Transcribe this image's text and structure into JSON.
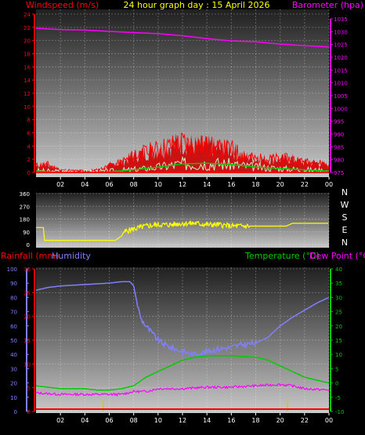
{
  "title": "24 hour graph day : 15 April 2026",
  "colors": {
    "wind": "#ff0000",
    "gust": "#cc0000",
    "avg": "#00cc00",
    "calm": "#cceecc",
    "baro": "#ff00ff",
    "dir": "#ffff00",
    "hum": "#8080ff",
    "temp": "#00cc00",
    "dew": "#ff00ff",
    "rain": "#ff0000",
    "rainbar": "#cccc00"
  },
  "x_ticks": [
    "02",
    "04",
    "06",
    "08",
    "10",
    "12",
    "14",
    "16",
    "18",
    "20",
    "22",
    "00"
  ],
  "panel_wind": {
    "left_label": "Windspeed (m/s)",
    "right_label": "Barometer (hpa)"
  },
  "panel_dir": {
    "compass": [
      "N",
      "W",
      "S",
      "E",
      "N"
    ]
  },
  "panel_climate": {
    "rain_label": "Rainfall (mm)",
    "hum_label": "Humidity",
    "temp_label": "Temperature (°C)",
    "dew_label": "Dew Point (°C)"
  },
  "chart_data": [
    {
      "type": "line",
      "title": "24 hour graph day : 15 April 2026",
      "x_label": "hour",
      "x_range": [
        0,
        24
      ],
      "left_axis": {
        "label": "Windspeed (m/s)",
        "range": [
          0,
          24
        ],
        "ticks": [
          0,
          2,
          4,
          6,
          8,
          10,
          12,
          14,
          16,
          18,
          20,
          22,
          24
        ]
      },
      "right_axis": {
        "label": "Barometer (hpa)",
        "range": [
          975,
          1035
        ],
        "ticks": [
          975,
          980,
          985,
          990,
          995,
          1000,
          1005,
          1010,
          1015,
          1020,
          1025,
          1030,
          1035
        ]
      },
      "series": [
        {
          "name": "Barometer (hpa)",
          "axis": "right",
          "x": [
            0,
            2,
            4,
            6,
            8,
            10,
            12,
            14,
            16,
            18,
            20,
            22,
            24
          ],
          "values": [
            1031.3,
            1030.8,
            1030.6,
            1030.1,
            1029.6,
            1029.2,
            1028.4,
            1027.3,
            1026.4,
            1026.0,
            1025.1,
            1024.5,
            1024.0
          ]
        },
        {
          "name": "Windspeed (m/s)",
          "axis": "left",
          "x": [
            0,
            1,
            2,
            3,
            4,
            5,
            6,
            7,
            8,
            9,
            10,
            11,
            12,
            13,
            14,
            15,
            16,
            17,
            18,
            19,
            20,
            21,
            22,
            23,
            24
          ],
          "values": [
            1.0,
            1.2,
            0.3,
            0.2,
            0.2,
            0.3,
            1.0,
            1.5,
            2.5,
            3.0,
            3.5,
            4.0,
            4.5,
            4.0,
            4.0,
            3.5,
            3.5,
            2.5,
            2.0,
            2.0,
            2.0,
            2.0,
            1.5,
            1.5,
            1.0
          ]
        },
        {
          "name": "Average",
          "axis": "left",
          "x": [
            0,
            2,
            4,
            6,
            8,
            10,
            12,
            14,
            16,
            18,
            20,
            22,
            24
          ],
          "values": [
            0.2,
            0.0,
            0.0,
            0.1,
            0.4,
            0.8,
            1.3,
            1.4,
            1.2,
            0.8,
            0.6,
            0.4,
            0.2
          ]
        }
      ]
    },
    {
      "type": "line",
      "title": "",
      "x_range": [
        0,
        24
      ],
      "y_axis": {
        "range": [
          0,
          360
        ],
        "ticks": [
          0,
          90,
          180,
          270,
          360
        ]
      },
      "series": [
        {
          "name": "Wind direction",
          "x": [
            0,
            0.6,
            0.7,
            6.5,
            7.0,
            7.2,
            7.6,
            8.0,
            8.5,
            9.0,
            10.0,
            11.0,
            12.0,
            13.0,
            14.0,
            15.0,
            16.0,
            17.0,
            17.5,
            19.0,
            20.5,
            21.0,
            22.5,
            24.0
          ],
          "values": [
            120,
            120,
            30,
            30,
            60,
            90,
            100,
            110,
            120,
            130,
            140,
            140,
            150,
            150,
            140,
            140,
            130,
            130,
            130,
            130,
            130,
            150,
            150,
            150
          ]
        }
      ]
    },
    {
      "type": "line",
      "title": "",
      "x_range": [
        0,
        24
      ],
      "axes": {
        "humidity": {
          "label": "Humidity",
          "range": [
            0,
            100
          ],
          "ticks": [
            0,
            10,
            20,
            30,
            40,
            50,
            60,
            70,
            80,
            90,
            100
          ]
        },
        "rainfall": {
          "label": "Rainfall (mm)",
          "range": [
            0,
            30
          ],
          "ticks": [
            0,
            5,
            10,
            15,
            20,
            25,
            30
          ]
        },
        "temperature": {
          "label": "Temperature (°C)",
          "range": [
            -10,
            40
          ],
          "ticks": [
            -10,
            -5,
            0,
            5,
            10,
            15,
            20,
            25,
            30,
            35,
            40
          ]
        }
      },
      "series": [
        {
          "name": "Humidity",
          "axis": "humidity",
          "x": [
            0,
            1,
            2,
            4,
            6,
            7,
            7.7,
            8,
            8.3,
            8.6,
            9.0,
            9.5,
            10.0,
            10.5,
            11.0,
            12.0,
            13.0,
            14.0,
            15.0,
            16.0,
            17.0,
            18.0,
            19.0,
            20.0,
            21.0,
            22.0,
            23.0,
            24.0
          ],
          "values": [
            85,
            87,
            88,
            89,
            90,
            91,
            91,
            88,
            75,
            65,
            60,
            55,
            50,
            47,
            45,
            42,
            40,
            42,
            44,
            45,
            47,
            48,
            52,
            60,
            66,
            71,
            76,
            80
          ]
        },
        {
          "name": "Temperature (°C)",
          "axis": "temperature",
          "x": [
            0,
            1,
            2,
            4,
            5,
            6,
            7,
            8,
            9,
            10,
            11,
            12,
            13,
            14,
            16,
            18,
            19,
            20,
            21,
            22,
            23,
            24
          ],
          "values": [
            -1,
            -1.5,
            -2,
            -2,
            -2.5,
            -2.5,
            -2,
            -1,
            2,
            4,
            6,
            8,
            9,
            9.5,
            9.5,
            9,
            8,
            6,
            4,
            2,
            1,
            0
          ]
        },
        {
          "name": "Dew Point (°C)",
          "axis": "temperature",
          "x": [
            0,
            2,
            4,
            6,
            7,
            8,
            9,
            10,
            12,
            14,
            16,
            18,
            20,
            21,
            22,
            24
          ],
          "values": [
            -3.5,
            -4,
            -4,
            -4,
            -4,
            -3,
            -3,
            -2,
            -2,
            -1.5,
            -1.5,
            -1,
            -0.5,
            -1,
            -2,
            -2.5
          ]
        },
        {
          "name": "Rainfall (mm)",
          "axis": "rainfall",
          "x": [
            0,
            24
          ],
          "values": [
            0.5,
            0.5
          ]
        }
      ]
    }
  ]
}
